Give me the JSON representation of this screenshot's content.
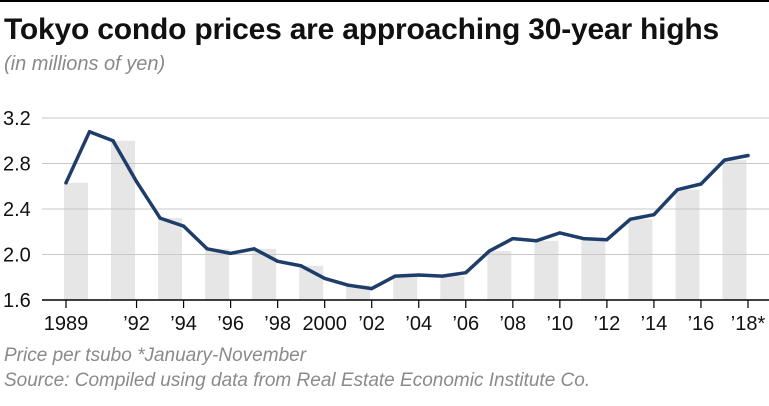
{
  "title": "Tokyo condo prices are approaching 30-year highs",
  "subtitle": "(in millions of yen)",
  "footnote": "Price per tsubo  *January-November",
  "source": "Source: Compiled using data from Real Estate Economic Institute Co.",
  "colors": {
    "line": "#1f3d6b",
    "bar": "#e6e6e6",
    "grid": "#c8c8c8",
    "axis": "#000000",
    "text": "#111111",
    "note": "#8a8a8a"
  },
  "chart_data": {
    "type": "line",
    "title": "Tokyo condo prices are approaching 30-year highs",
    "ylabel": "(in millions of yen)",
    "xlabel": "",
    "ylim": [
      1.6,
      3.3
    ],
    "yticks": [
      1.6,
      2.0,
      2.4,
      2.8,
      3.2
    ],
    "ytick_labels": [
      "1.6",
      "2.0",
      "2.4",
      "2.8",
      "3.2"
    ],
    "grid": true,
    "x": [
      1989,
      1990,
      1991,
      1992,
      1993,
      1994,
      1995,
      1996,
      1997,
      1998,
      1999,
      2000,
      2001,
      2002,
      2003,
      2004,
      2005,
      2006,
      2007,
      2008,
      2009,
      2010,
      2011,
      2012,
      2013,
      2014,
      2015,
      2016,
      2017,
      2018
    ],
    "values": [
      2.63,
      3.08,
      3.0,
      2.64,
      2.32,
      2.25,
      2.05,
      2.01,
      2.05,
      1.94,
      1.9,
      1.79,
      1.73,
      1.7,
      1.81,
      1.82,
      1.81,
      1.84,
      2.03,
      2.14,
      2.12,
      2.19,
      2.14,
      2.13,
      2.31,
      2.35,
      2.57,
      2.62,
      2.83,
      2.87
    ],
    "xtick_years": [
      1989,
      1992,
      1994,
      1996,
      1998,
      2000,
      2002,
      2004,
      2006,
      2008,
      2010,
      2012,
      2014,
      2016,
      2018
    ],
    "xtick_labels": [
      "1989",
      "’92",
      "’94",
      "’96",
      "’98",
      "2000",
      "’02",
      "’04",
      "’06",
      "’08",
      "’10",
      "’12",
      "’14",
      "’16",
      "’18*"
    ],
    "bars_shown_for_years": [
      1989,
      1991,
      1993,
      1995,
      1997,
      1999,
      2001,
      2003,
      2005,
      2007,
      2009,
      2011,
      2013,
      2015,
      2017
    ]
  }
}
